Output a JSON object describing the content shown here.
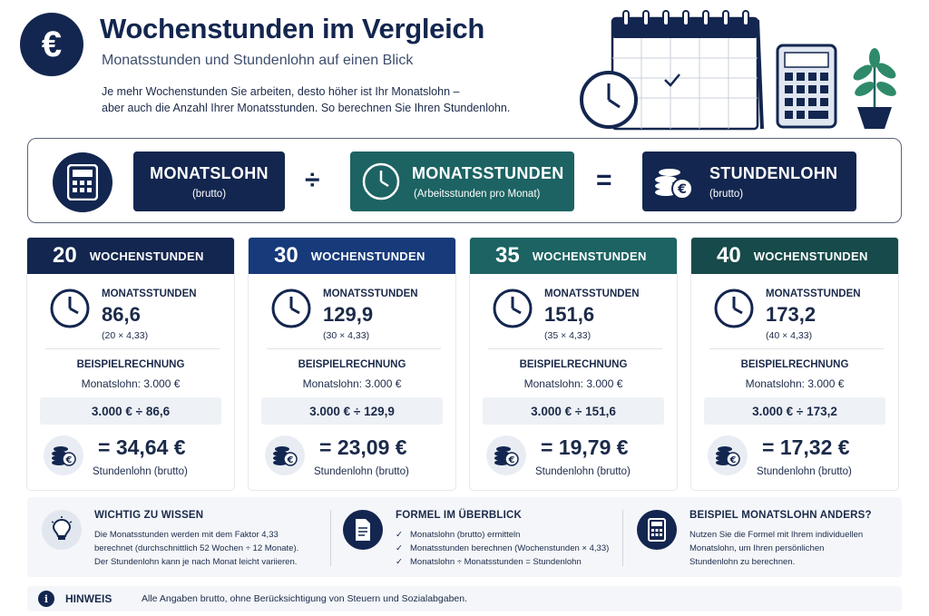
{
  "header": {
    "title": "Wochenstunden im Vergleich",
    "subtitle": "Monatsstunden und Stundenlohn auf einen Blick",
    "intro_line1": "Je mehr Wochenstunden Sie arbeiten, desto höher ist Ihr Monatslohn –",
    "intro_line2": "aber auch die Anzahl Ihrer Monatsstunden. So berechnen Sie Ihren Stundenlohn.",
    "badge_symbol": "€"
  },
  "formula": {
    "monatslohn": {
      "title": "MONATSLOHN",
      "sub": "(brutto)",
      "color": "#13264f"
    },
    "divide": "÷",
    "monatsstunden": {
      "title": "MONATSSTUNDEN",
      "sub": "(Arbeitsstunden pro Monat)",
      "color": "#1d6363"
    },
    "equals": "=",
    "stundenlohn": {
      "title": "STUNDENLOHN",
      "sub": "(brutto)",
      "color": "#13264f"
    }
  },
  "cards": [
    {
      "hours": "20",
      "label": "WOCHENSTUNDEN",
      "color": "#13264f",
      "ms_label": "MONATSSTUNDEN",
      "ms_value": "86,6",
      "ms_formula": "(20 × 4,33)",
      "bsp_title": "BEISPIELRECHNUNG",
      "bsp_lohn": "Monatslohn: 3.000 €",
      "calc": "3.000 € ÷ 86,6",
      "result": "= 34,64 €",
      "result_label": "Stundenlohn (brutto)"
    },
    {
      "hours": "30",
      "label": "WOCHENSTUNDEN",
      "color": "#173a7a",
      "ms_label": "MONATSSTUNDEN",
      "ms_value": "129,9",
      "ms_formula": "(30 × 4,33)",
      "bsp_title": "BEISPIELRECHNUNG",
      "bsp_lohn": "Monatslohn: 3.000 €",
      "calc": "3.000 € ÷ 129,9",
      "result": "= 23,09 €",
      "result_label": "Stundenlohn (brutto)"
    },
    {
      "hours": "35",
      "label": "WOCHENSTUNDEN",
      "color": "#1d6363",
      "ms_label": "MONATSSTUNDEN",
      "ms_value": "151,6",
      "ms_formula": "(35 × 4,33)",
      "bsp_title": "BEISPIELRECHNUNG",
      "bsp_lohn": "Monatslohn: 3.000 €",
      "calc": "3.000 € ÷ 151,6",
      "result": "= 19,79 €",
      "result_label": "Stundenlohn (brutto)"
    },
    {
      "hours": "40",
      "label": "WOCHENSTUNDEN",
      "color": "#174a4a",
      "ms_label": "MONATSSTUNDEN",
      "ms_value": "173,2",
      "ms_formula": "(40 × 4,33)",
      "bsp_title": "BEISPIELRECHNUNG",
      "bsp_lohn": "Monatslohn: 3.000 €",
      "calc": "3.000 € ÷ 173,2",
      "result": "= 17,32 €",
      "result_label": "Stundenlohn (brutto)"
    }
  ],
  "info": {
    "wichtig": {
      "title": "WICHTIG ZU WISSEN",
      "line1": "Die Monatsstunden werden mit dem Faktor 4,33",
      "line2": "berechnet (durchschnittlich 52 Wochen ÷ 12 Monate).",
      "line3": "Der Stundenlohn kann je nach Monat leicht variieren."
    },
    "formel": {
      "title": "FORMEL IM ÜBERBLICK",
      "steps": [
        "Monatslohn (brutto) ermitteln",
        "Monatsstunden berechnen (Wochenstunden × 4,33)",
        "Monatslohn ÷ Monatsstunden = Stundenlohn"
      ]
    },
    "beispiel": {
      "title": "BEISPIEL MONATSLOHN ANDERS?",
      "line1": "Nutzen Sie die Formel mit Ihrem individuellen",
      "line2": "Monatslohn, um Ihren persönlichen",
      "line3": "Stundenlohn zu berechnen."
    }
  },
  "hinweis": {
    "label": "HINWEIS",
    "text": "Alle Angaben brutto, ohne Berücksichtigung von Steuern und Sozialabgaben."
  }
}
